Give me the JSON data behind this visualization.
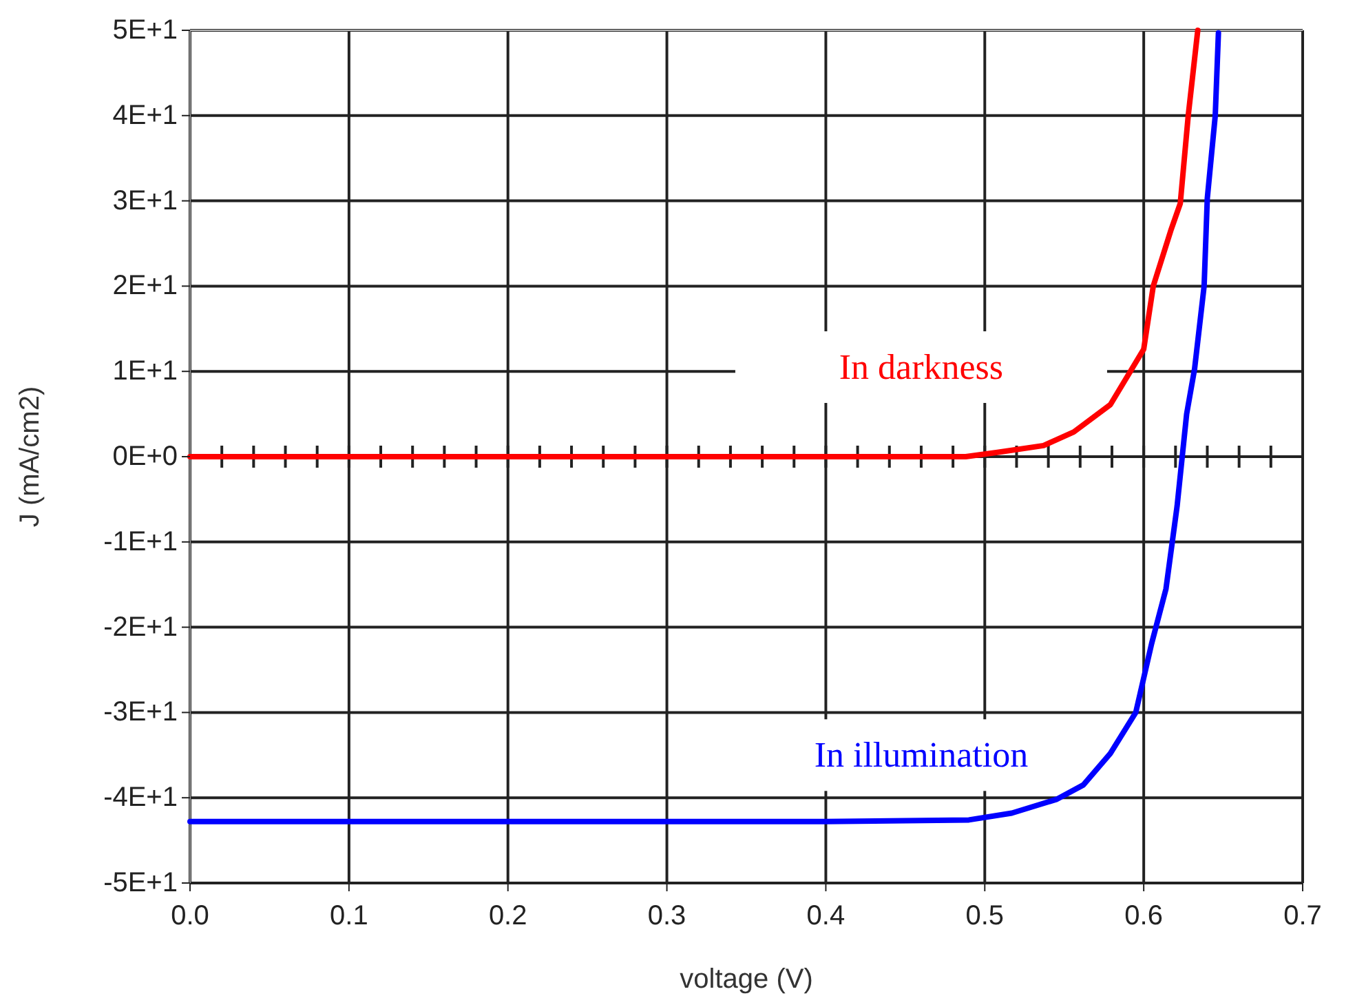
{
  "chart_data": {
    "type": "line",
    "xlabel": "voltage (V)",
    "ylabel": "J (mA/cm2)",
    "xlim": [
      0,
      0.7
    ],
    "ylim": [
      -50,
      50
    ],
    "xticks": [
      {
        "value": 0,
        "label": "0.0"
      },
      0.1,
      0.2,
      0.3,
      0.4,
      0.5,
      0.6,
      0.7
    ],
    "yticks": [
      {
        "value": -50,
        "label": "-5E+1"
      },
      {
        "value": -40,
        "label": "-4E+1"
      },
      {
        "value": -30,
        "label": "-3E+1"
      },
      {
        "value": -20,
        "label": "-2E+1"
      },
      {
        "value": -10,
        "label": "-1E+1"
      },
      {
        "value": 0,
        "label": "0E+0"
      },
      {
        "value": 10,
        "label": "1E+1"
      },
      {
        "value": 20,
        "label": "2E+1"
      },
      {
        "value": 30,
        "label": "3E+1"
      },
      {
        "value": 40,
        "label": "4E+1"
      },
      {
        "value": 50,
        "label": "5E+1"
      }
    ],
    "grid": true,
    "marker": "none",
    "line_style": "solid",
    "series": [
      {
        "name": "In darkness",
        "color": "#ff0000",
        "x": [
          0,
          0.1,
          0.2,
          0.3,
          0.4,
          0.488,
          0.508,
          0.537,
          0.556,
          0.579,
          0.6,
          0.606,
          0.617,
          0.623,
          0.628,
          0.634
        ],
        "values": [
          0,
          0,
          0,
          0,
          0,
          0,
          0.5,
          1.3,
          2.9,
          6.1,
          12.6,
          20,
          26.5,
          29.7,
          40,
          50
        ]
      },
      {
        "name": "In illumination",
        "color": "#0000ff",
        "x": [
          0,
          0.1,
          0.2,
          0.3,
          0.4,
          0.49,
          0.517,
          0.545,
          0.562,
          0.579,
          0.595,
          0.605,
          0.614,
          0.621,
          0.627,
          0.632,
          0.638,
          0.64,
          0.645,
          0.647
        ],
        "values": [
          -42.8,
          -42.8,
          -42.8,
          -42.8,
          -42.8,
          -42.6,
          -41.8,
          -40.2,
          -38.5,
          -34.8,
          -30,
          -21.9,
          -15.5,
          -5.8,
          5,
          10.3,
          20,
          30.3,
          40,
          49.7
        ]
      }
    ]
  }
}
